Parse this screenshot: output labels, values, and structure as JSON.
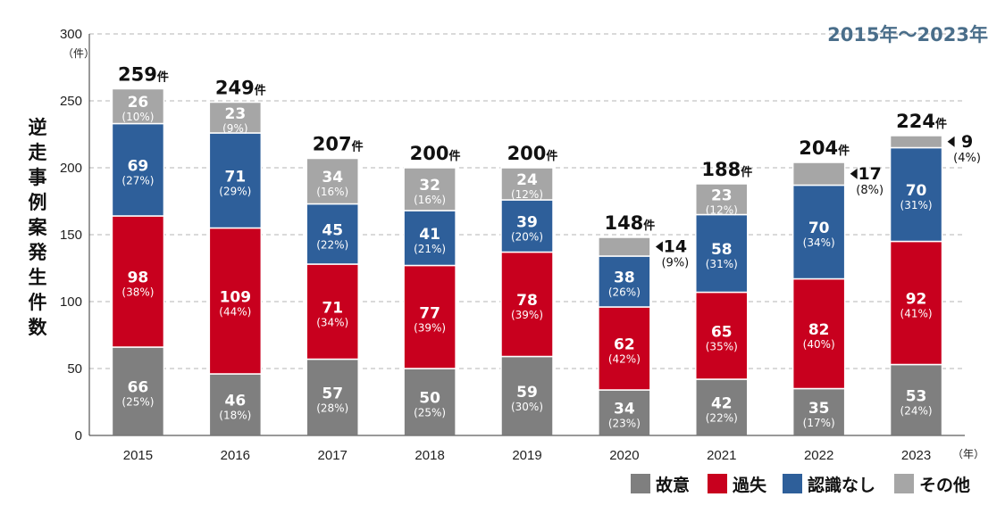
{
  "chart_data": {
    "type": "bar",
    "stacked": true,
    "period_label": "2015年〜2023年",
    "ylabel": "逆走事例案発生件数",
    "y_unit": "（件）",
    "x_unit": "（年）",
    "total_suffix": "件",
    "ylim": [
      0,
      300
    ],
    "y_ticks": [
      "0",
      "50",
      "100",
      "150",
      "200",
      "250",
      "300"
    ],
    "grid": true,
    "legend_position": "bottom-right",
    "categories": [
      "2015",
      "2016",
      "2017",
      "2018",
      "2019",
      "2020",
      "2021",
      "2022",
      "2023"
    ],
    "totals": [
      "259",
      "249",
      "207",
      "200",
      "200",
      "148",
      "188",
      "204",
      "224"
    ],
    "series": [
      {
        "name": "故意",
        "color": "#7f7f7f",
        "values": [
          66,
          46,
          57,
          50,
          59,
          34,
          42,
          35,
          53
        ],
        "labels": [
          "66",
          "46",
          "57",
          "50",
          "59",
          "34",
          "42",
          "35",
          "53"
        ],
        "pcts": [
          "(25%)",
          "(18%)",
          "(28%)",
          "(25%)",
          "(30%)",
          "(23%)",
          "(22%)",
          "(17%)",
          "(24%)"
        ]
      },
      {
        "name": "過失",
        "color": "#c8001e",
        "values": [
          98,
          109,
          71,
          77,
          78,
          62,
          65,
          82,
          92
        ],
        "labels": [
          "98",
          "109",
          "71",
          "77",
          "78",
          "62",
          "65",
          "82",
          "92"
        ],
        "pcts": [
          "(38%)",
          "(44%)",
          "(34%)",
          "(39%)",
          "(39%)",
          "(42%)",
          "(35%)",
          "(40%)",
          "(41%)"
        ]
      },
      {
        "name": "認識なし",
        "color": "#2e5f9a",
        "values": [
          69,
          71,
          45,
          41,
          39,
          38,
          58,
          70,
          70
        ],
        "labels": [
          "69",
          "71",
          "45",
          "41",
          "39",
          "38",
          "58",
          "70",
          "70"
        ],
        "pcts": [
          "(27%)",
          "(29%)",
          "(22%)",
          "(21%)",
          "(20%)",
          "(26%)",
          "(31%)",
          "(34%)",
          "(31%)"
        ]
      },
      {
        "name": "その他",
        "color": "#a6a6a6",
        "values": [
          26,
          23,
          34,
          32,
          24,
          14,
          23,
          17,
          9
        ],
        "labels": [
          "26",
          "23",
          "34",
          "32",
          "24",
          "14",
          "23",
          "17",
          "9"
        ],
        "pcts": [
          "(10%)",
          "(9%)",
          "(16%)",
          "(16%)",
          "(12%)",
          "(9%)",
          "(12%)",
          "(8%)",
          "(4%)"
        ],
        "outside_label": [
          false,
          false,
          false,
          false,
          false,
          true,
          false,
          true,
          true
        ]
      }
    ]
  }
}
